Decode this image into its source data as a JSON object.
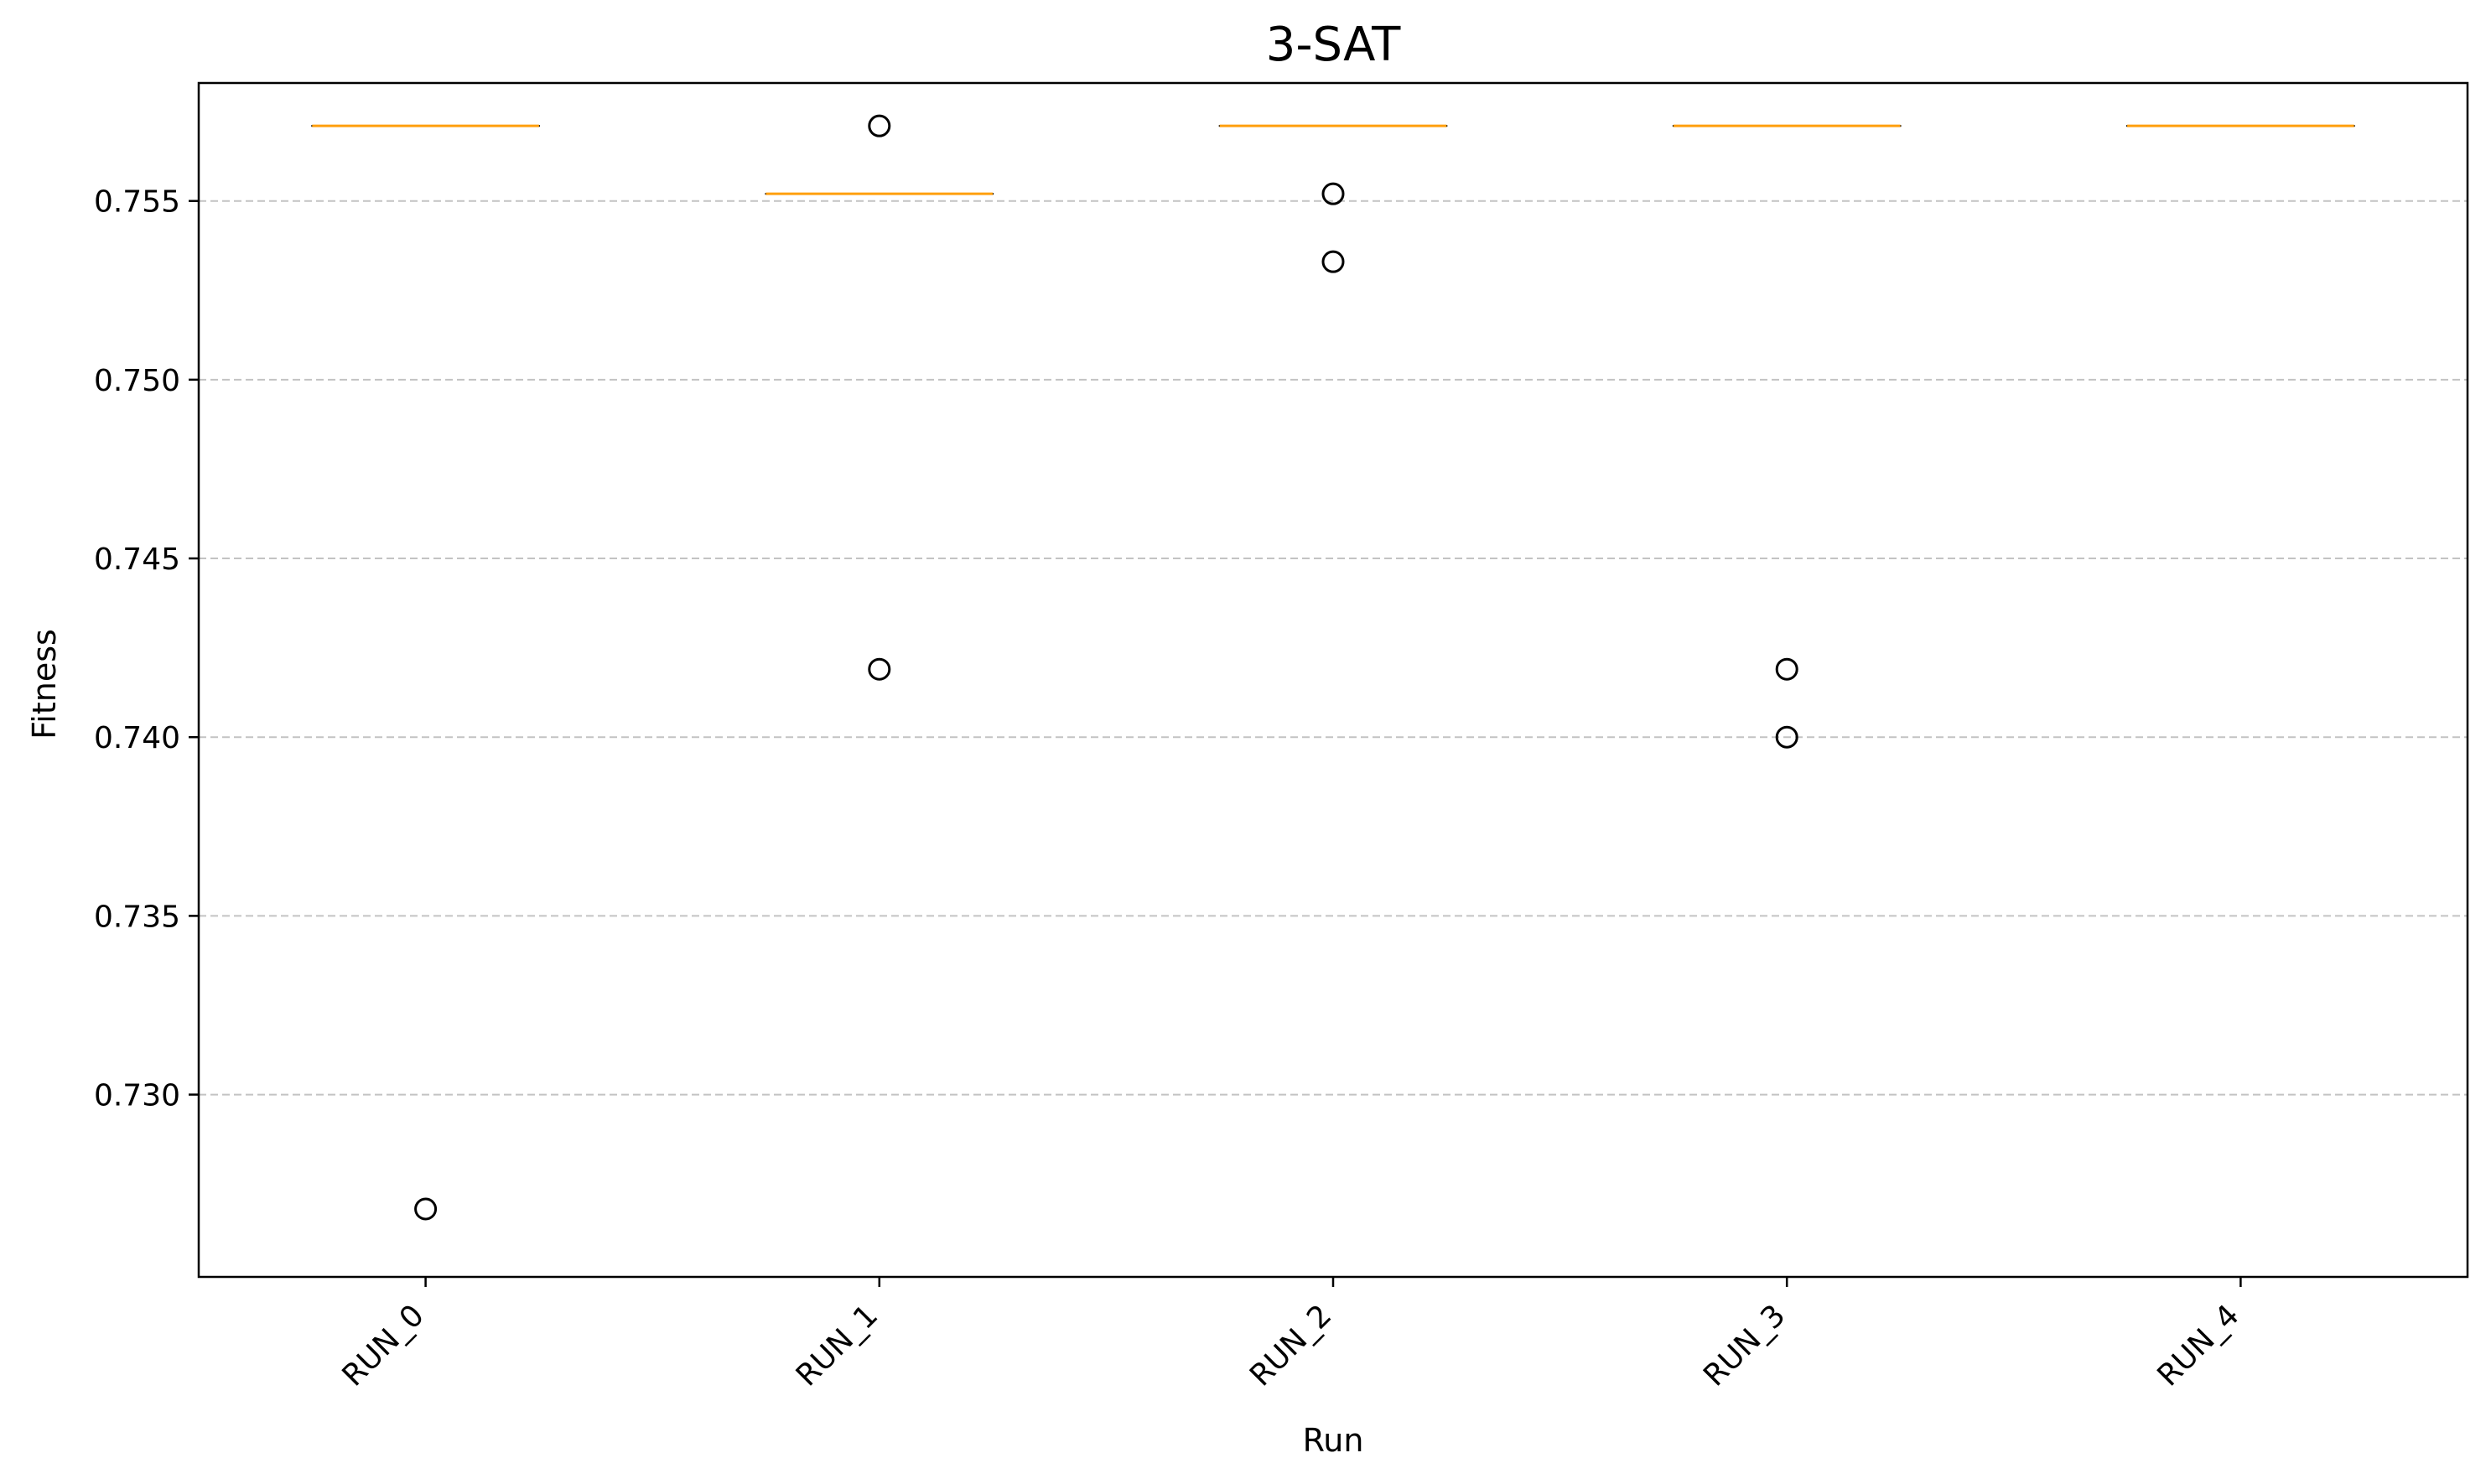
{
  "chart_data": {
    "type": "box",
    "title": "3-SAT",
    "xlabel": "Run",
    "ylabel": "Fitness",
    "categories": [
      "RUN_0",
      "RUN_1",
      "RUN_2",
      "RUN_3",
      "RUN_4"
    ],
    "ylim": [
      0.7249,
      0.7583
    ],
    "yticks": [
      0.73,
      0.735,
      0.74,
      0.745,
      0.75,
      0.755
    ],
    "ytick_labels": [
      "0.730",
      "0.735",
      "0.740",
      "0.745",
      "0.750",
      "0.755"
    ],
    "grid": "y-dashed",
    "colors": {
      "median": "#ff9f0e",
      "flier": "#000000",
      "grid": "#b0b0b0"
    },
    "series": [
      {
        "category": "RUN_0",
        "median": 0.7571,
        "q1": 0.7571,
        "q3": 0.7571,
        "whisker_low": 0.7571,
        "whisker_high": 0.7571,
        "fliers": [
          0.7268
        ]
      },
      {
        "category": "RUN_1",
        "median": 0.7552,
        "q1": 0.7552,
        "q3": 0.7552,
        "whisker_low": 0.7552,
        "whisker_high": 0.7552,
        "fliers": [
          0.7571,
          0.7419
        ]
      },
      {
        "category": "RUN_2",
        "median": 0.7571,
        "q1": 0.7571,
        "q3": 0.7571,
        "whisker_low": 0.7571,
        "whisker_high": 0.7571,
        "fliers": [
          0.7552,
          0.7533
        ]
      },
      {
        "category": "RUN_3",
        "median": 0.7571,
        "q1": 0.7571,
        "q3": 0.7571,
        "whisker_low": 0.7571,
        "whisker_high": 0.7571,
        "fliers": [
          0.7419,
          0.74
        ]
      },
      {
        "category": "RUN_4",
        "median": 0.7571,
        "q1": 0.7571,
        "q3": 0.7571,
        "whisker_low": 0.7571,
        "whisker_high": 0.7571,
        "fliers": []
      }
    ]
  }
}
